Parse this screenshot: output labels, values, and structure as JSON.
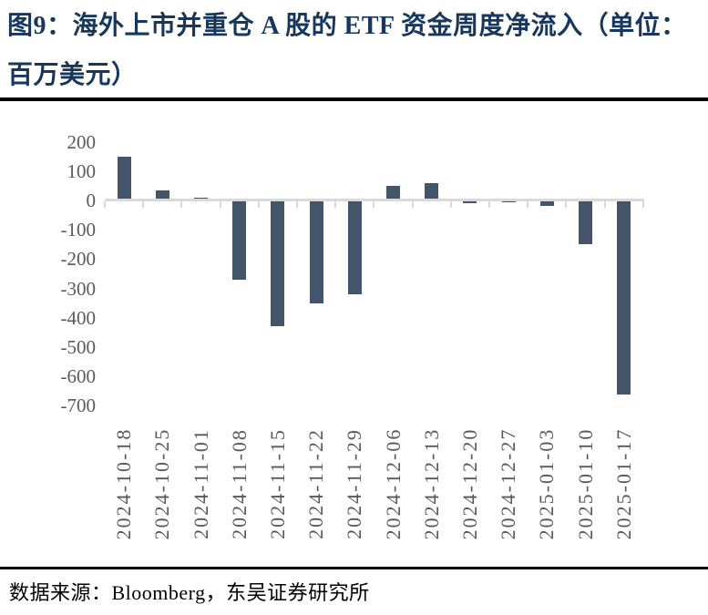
{
  "figure": {
    "title": "图9：海外上市并重仓 A 股的 ETF 资金周度净流入（单位：百万美元）",
    "source": "数据来源：Bloomberg，东吴证券研究所"
  },
  "colors": {
    "title": "#17375E",
    "bar": "#44546A",
    "axis": "#D9D9D9",
    "tick_label": "#595959",
    "separator": "#000000"
  },
  "chart_data": {
    "type": "bar",
    "title": "海外上市并重仓A股的ETF资金周度净流入",
    "unit": "百万美元",
    "categories": [
      "2024-10-18",
      "2024-10-25",
      "2024-11-01",
      "2024-11-08",
      "2024-11-15",
      "2024-11-22",
      "2024-11-29",
      "2024-12-06",
      "2024-12-13",
      "2024-12-20",
      "2024-12-27",
      "2025-01-03",
      "2025-01-10",
      "2025-01-17"
    ],
    "values": [
      150,
      35,
      10,
      -270,
      -430,
      -350,
      -320,
      50,
      60,
      -8,
      -6,
      -18,
      -150,
      -660
    ],
    "yticks": [
      200,
      100,
      0,
      -100,
      -200,
      -300,
      -400,
      -500,
      -600,
      -700
    ],
    "ylim": [
      -700,
      200
    ],
    "ytick_step": 100,
    "xlabel": "",
    "ylabel": "",
    "grid": false,
    "legend": false
  }
}
